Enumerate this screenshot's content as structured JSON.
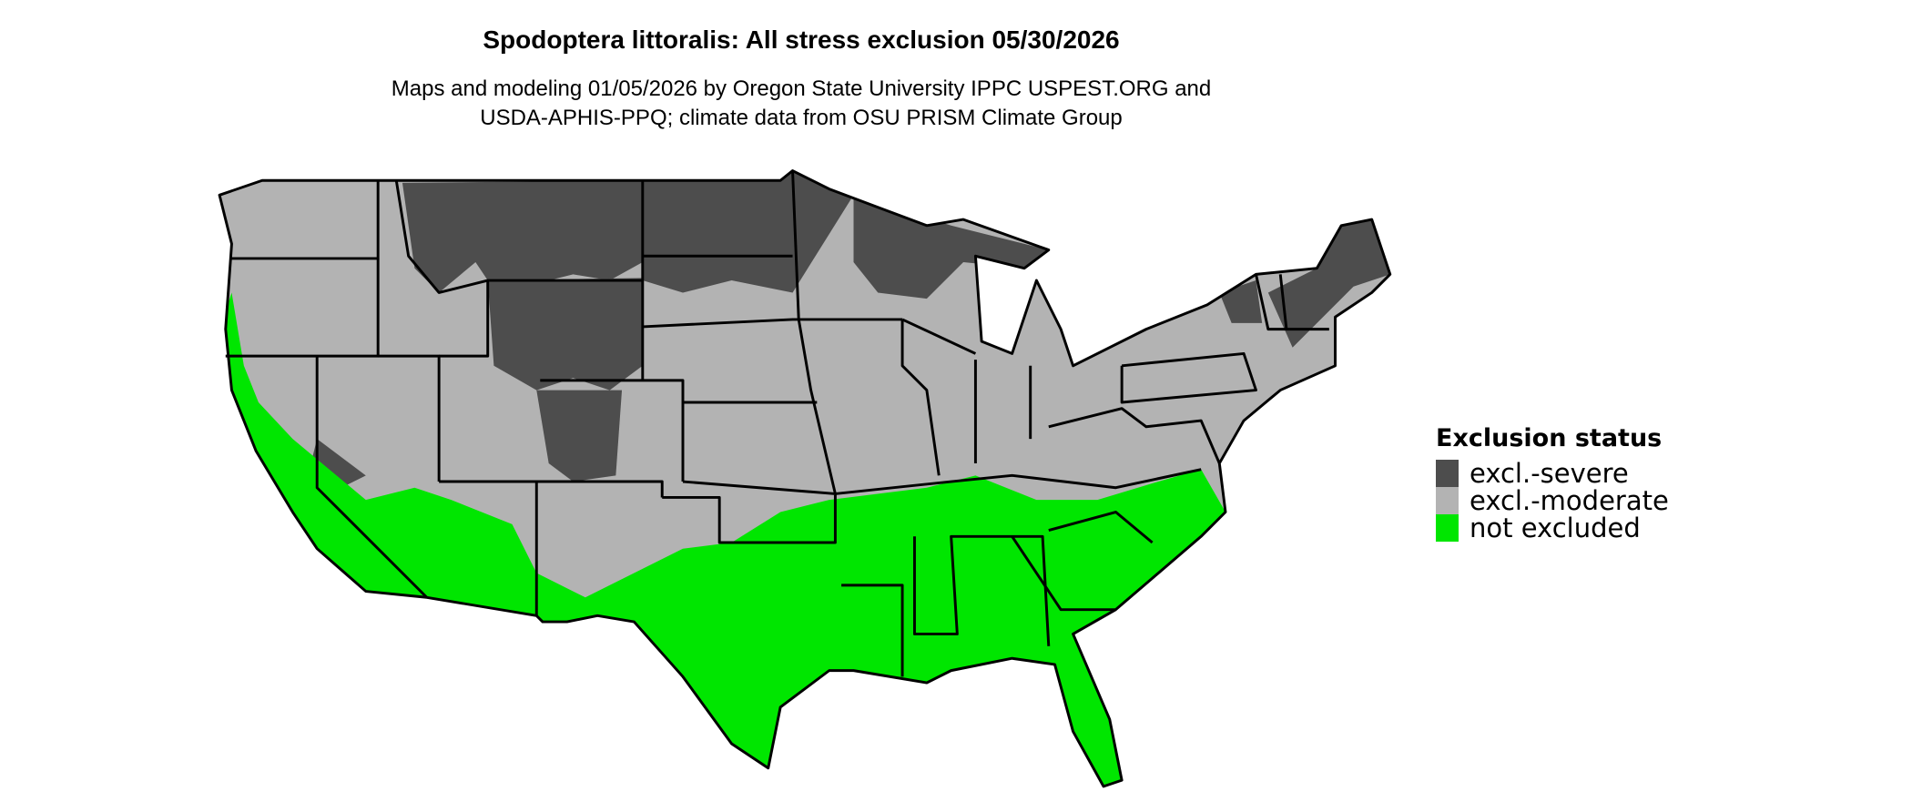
{
  "title": "Spodoptera littoralis: All stress exclusion 05/30/2026",
  "subtitle_line1": "Maps and modeling 01/05/2026 by Oregon State University IPPC USPEST.ORG and",
  "subtitle_line2": "USDA-APHIS-PPQ; climate data from OSU PRISM Climate Group",
  "legend": {
    "title": "Exclusion status",
    "placement": "right",
    "items": [
      {
        "label": "excl.-severe",
        "color": "#4d4d4d"
      },
      {
        "label": "excl.-moderate",
        "color": "#b3b3b3"
      },
      {
        "label": "not excluded",
        "color": "#00e600"
      }
    ]
  },
  "map": {
    "region": "Contiguous United States",
    "boundaries": "state lines",
    "background": "#ffffff"
  }
}
